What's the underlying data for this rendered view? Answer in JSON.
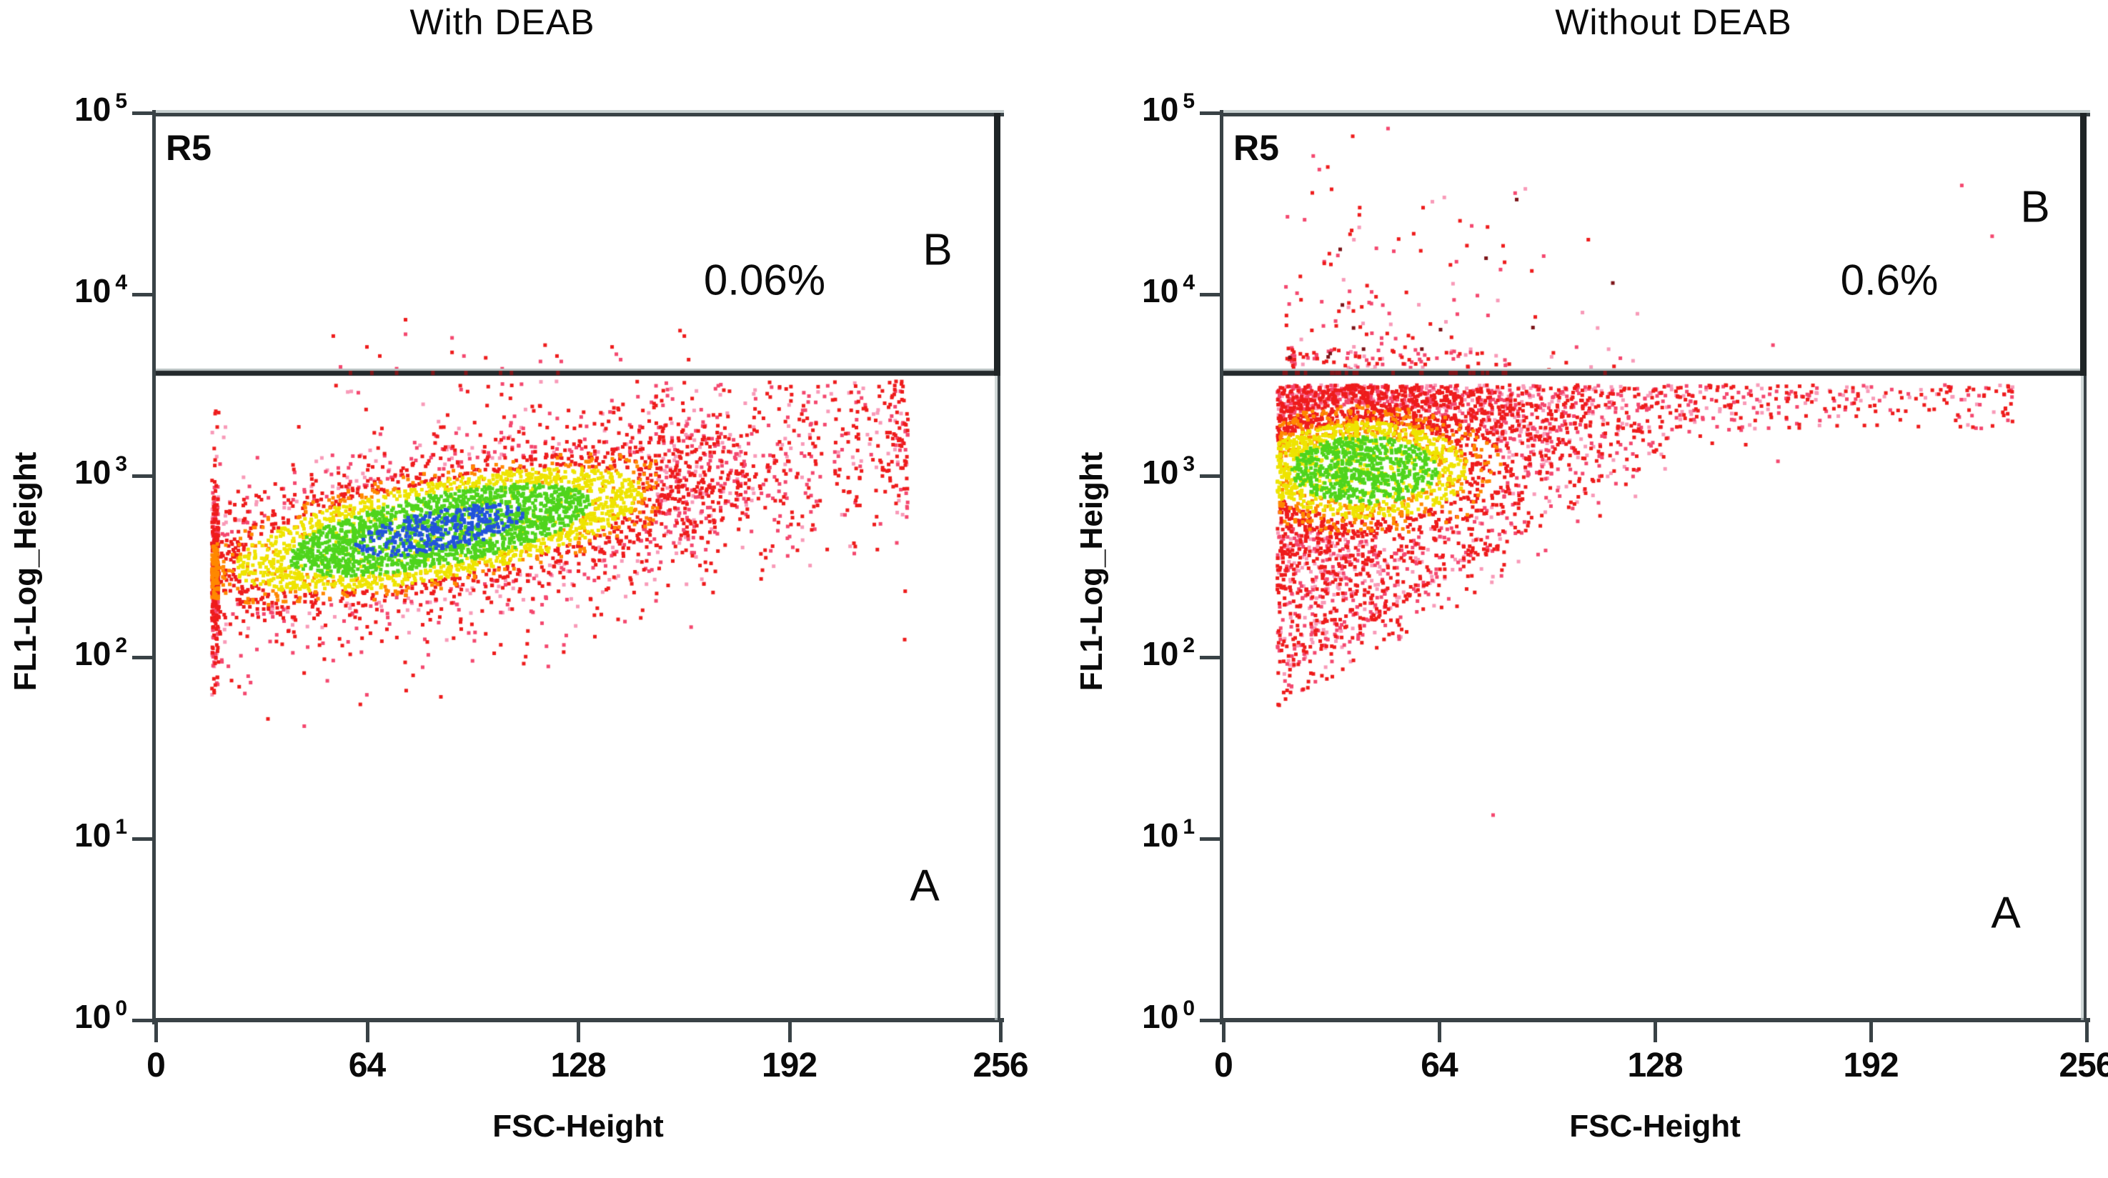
{
  "figure": {
    "background": "#ffffff",
    "kind": "flow-cytometry-density-dot-plots",
    "panel_count": 2
  },
  "palette": {
    "red": "#ee1c1c",
    "rose": "#f4486f",
    "pink": "#f89ab8",
    "orange": "#ff8800",
    "yellow": "#eee400",
    "green": "#4fd41d",
    "blue": "#2353dc",
    "dark_red": "#7c1418",
    "frame": "#394246",
    "text": "#0a0a0a"
  },
  "chart_data": [
    {
      "type": "scatter",
      "variant": "flow-cytometry-density",
      "title": "With DEAB",
      "xlabel": "FSC-Height",
      "ylabel": "FL1-Log_Height",
      "x_ticks": [
        0,
        64,
        128,
        192,
        256
      ],
      "x_range": [
        0,
        256
      ],
      "y_scale": "log10",
      "y_tick_base": "10",
      "y_tick_exponents": [
        5,
        4,
        3,
        2,
        1,
        0
      ],
      "y_range_exponents": [
        0,
        5
      ],
      "grid": false,
      "gate": {
        "name": "R5",
        "threshold_log10": 3.567,
        "region_above": "B",
        "region_below": "A",
        "percent_b": "0.06%"
      },
      "clusters": [
        {
          "shape": "tilted-ellipse",
          "description": "dense elongated blob, red periphery, yellow-green core, blue center",
          "fsc_wall_min": 17,
          "fsc_max": 228,
          "fsc_center": 84,
          "fsc_sigma_core": 44,
          "fsc_sigma_tail": 62,
          "ridge_log10_at_fsc17": 2.47,
          "ridge_slope_per_fsc": 0.00335,
          "log10_sigma_core": 0.185,
          "log10_sigma_tail": 0.26,
          "log10_sigma_fringe": 0.38,
          "count": 5600,
          "core_color_order": [
            "blue",
            "green",
            "yellow",
            "orange",
            "red",
            "rose",
            "pink"
          ]
        }
      ],
      "points_above_gate": [
        [
          53.8,
          3.77
        ],
        [
          75.7,
          3.86
        ],
        [
          75.7,
          3.78
        ],
        [
          64,
          3.71
        ],
        [
          67.9,
          3.66
        ],
        [
          89.8,
          3.76
        ],
        [
          89.8,
          3.68
        ],
        [
          93.4,
          3.66
        ],
        [
          100,
          3.65
        ],
        [
          118,
          3.72
        ],
        [
          116.6,
          3.63
        ],
        [
          121.6,
          3.66
        ],
        [
          122.9,
          3.63
        ],
        [
          138.3,
          3.71
        ],
        [
          139.6,
          3.67
        ],
        [
          140.9,
          3.64
        ],
        [
          158.9,
          3.8
        ],
        [
          160.2,
          3.77
        ],
        [
          161.5,
          3.64
        ],
        [
          73,
          3.59
        ],
        [
          56,
          3.6
        ],
        [
          105,
          3.59
        ]
      ],
      "points_on_gate": [
        [
          59,
          3.555
        ],
        [
          65.5,
          3.555
        ],
        [
          73,
          3.555
        ],
        [
          84,
          3.555
        ],
        [
          94,
          3.555
        ],
        [
          104.5,
          3.555
        ],
        [
          107.8,
          3.555
        ],
        [
          121.9,
          3.555
        ]
      ],
      "points_low_outliers": [
        [
          22,
          1.95
        ],
        [
          27,
          1.8
        ],
        [
          34,
          1.66
        ],
        [
          45,
          1.62
        ],
        [
          52,
          1.87
        ],
        [
          62,
          1.74
        ],
        [
          78,
          1.9
        ],
        [
          96,
          1.98
        ]
      ]
    },
    {
      "type": "scatter",
      "variant": "flow-cytometry-density",
      "title": "Without DEAB",
      "xlabel": "FSC-Height",
      "ylabel": "FL1-Log_Height",
      "x_ticks": [
        0,
        64,
        128,
        192,
        256
      ],
      "x_range": [
        0,
        256
      ],
      "y_scale": "log10",
      "y_tick_base": "10",
      "y_tick_exponents": [
        5,
        4,
        3,
        2,
        1,
        0
      ],
      "y_range_exponents": [
        0,
        5
      ],
      "grid": false,
      "gate": {
        "name": "R5",
        "threshold_log10": 3.567,
        "region_above": "B",
        "region_below": "A",
        "percent_b": "0.6%"
      },
      "clusters": [
        {
          "shape": "wedge",
          "description": "comma-shaped blob hugging left wall, top pressed against gate, yellow-green core, no blue",
          "fsc_wall_min": 16,
          "fsc_max": 235,
          "fsc_sigma_levels": [
            34,
            58,
            95
          ],
          "log10_top": 3.5,
          "log10_bottom_at_wall": 1.9,
          "bottom_slope_per_fsc": 0.0105,
          "core_fsc_center": 42,
          "core_log10_center": 3.03,
          "count": 4800,
          "core_color_order": [
            "green",
            "yellow",
            "orange",
            "red",
            "rose",
            "pink"
          ]
        }
      ],
      "b_region_scatter": {
        "count": 225,
        "fsc_offset": 18,
        "fsc_sigma": 42,
        "fsc_max": 150,
        "log10_min": 3.57,
        "log10_max": 4.92,
        "bias": "denser near gate line"
      },
      "points_above_gate": [
        [
          228,
          4.32
        ],
        [
          219,
          4.6
        ],
        [
          163,
          3.72
        ]
      ],
      "points_on_gate_count": 26,
      "points_low_outliers": [
        [
          80,
          1.13
        ]
      ]
    }
  ]
}
